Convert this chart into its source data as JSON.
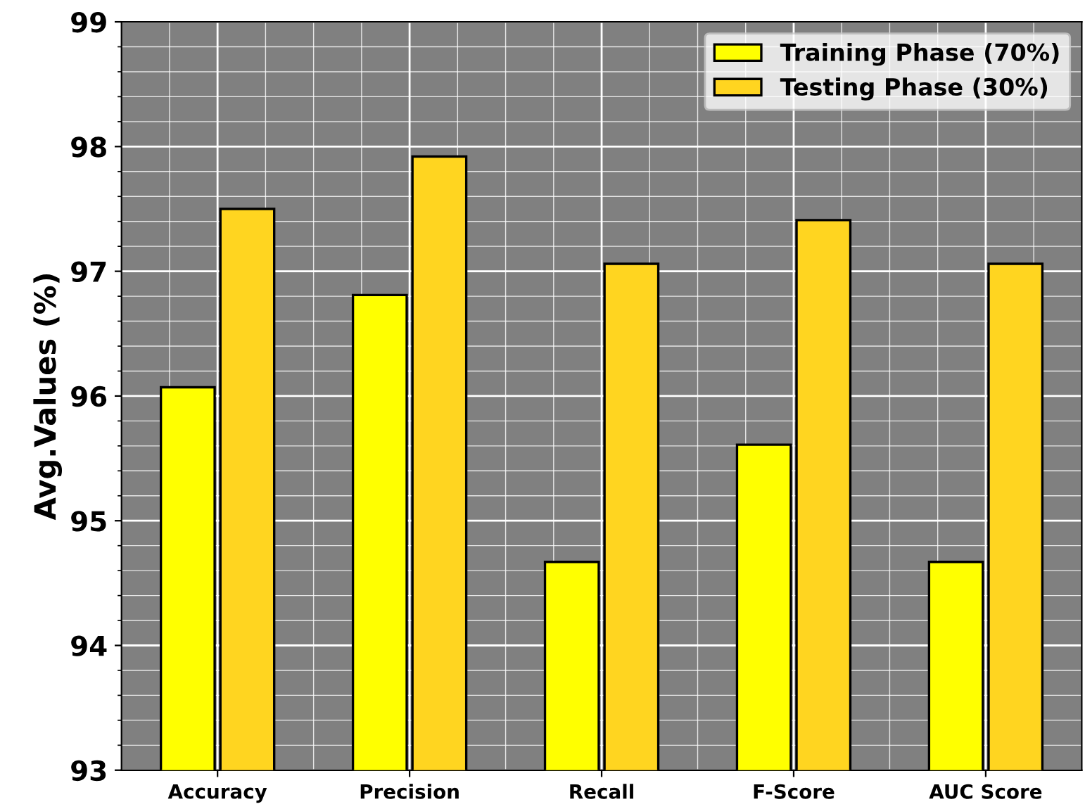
{
  "chart_data": {
    "type": "bar",
    "ylabel": "Avg.Values (%)",
    "categories": [
      "Accuracy",
      "Precision",
      "Recall",
      "F-Score",
      "AUC Score"
    ],
    "series": [
      {
        "name": "Training Phase (70%)",
        "color": "#ffff00",
        "values": [
          96.07,
          96.81,
          94.67,
          95.61,
          94.67
        ]
      },
      {
        "name": "Testing Phase (30%)",
        "color": "#ffd520",
        "values": [
          97.5,
          97.92,
          97.06,
          97.41,
          97.06
        ]
      }
    ],
    "ylim": [
      93,
      99
    ],
    "yticks": [
      93,
      94,
      95,
      96,
      97,
      98,
      99
    ],
    "grid": true,
    "legend": "top right"
  }
}
